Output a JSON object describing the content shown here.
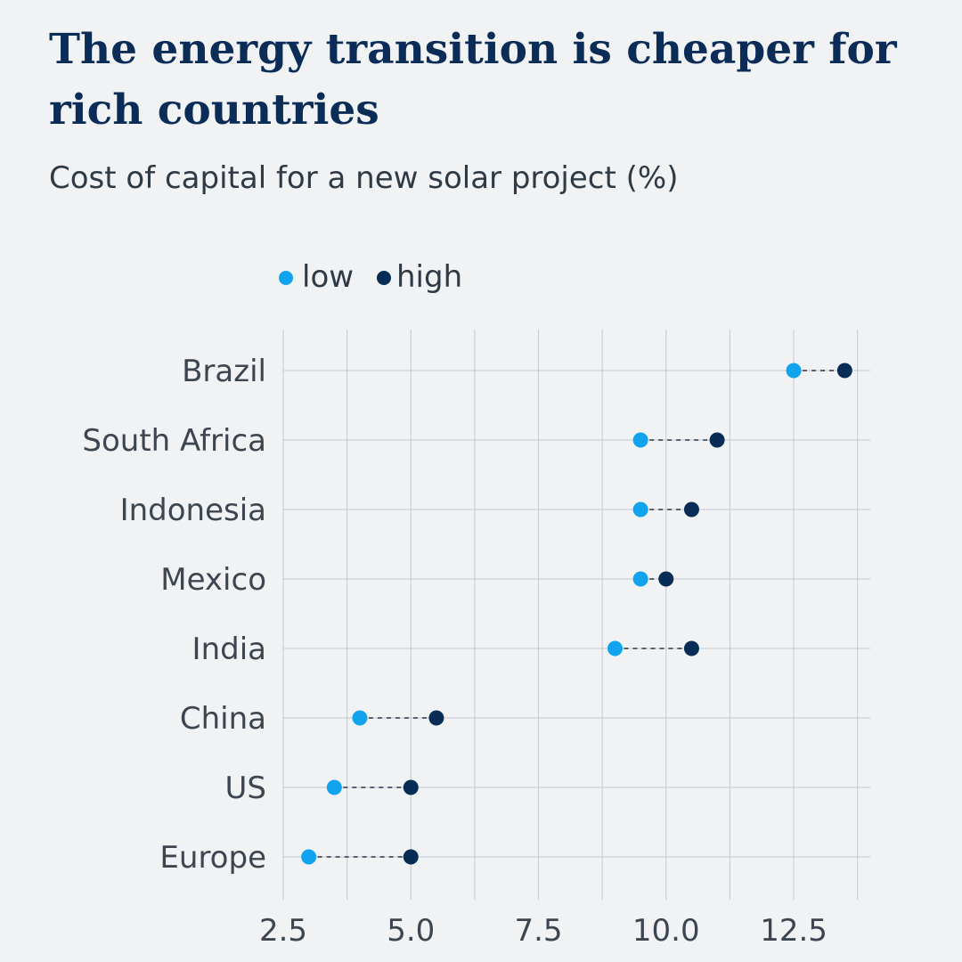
{
  "title": "The energy transition is cheaper for rich countries",
  "subtitle": "Cost of capital for a new solar project (%)",
  "colors": {
    "low": "#12a3ee",
    "high": "#072c55",
    "grid": "#c3c9d0",
    "connector": "#5a6470"
  },
  "legend": {
    "low": "low",
    "high": "high"
  },
  "chart_data": {
    "type": "dumbbell",
    "title": "The energy transition is cheaper for rich countries",
    "subtitle": "Cost of capital for a new solar project (%)",
    "xlabel": "",
    "ylabel": "",
    "xlim": [
      2.5,
      14.0
    ],
    "x_ticks": [
      2.5,
      5.0,
      7.5,
      10.0,
      12.5
    ],
    "x_tick_labels": [
      "2.5",
      "5.0",
      "7.5",
      "10.0",
      "12.5"
    ],
    "grid": true,
    "legend_position": "top",
    "categories": [
      "Brazil",
      "South Africa",
      "Indonesia",
      "Mexico",
      "India",
      "China",
      "US",
      "Europe"
    ],
    "series": [
      {
        "name": "low",
        "values": [
          12.5,
          9.5,
          9.5,
          9.5,
          9.0,
          4.0,
          3.5,
          3.0
        ]
      },
      {
        "name": "high",
        "values": [
          13.5,
          11.0,
          10.5,
          10.0,
          10.5,
          5.5,
          5.0,
          5.0
        ]
      }
    ]
  }
}
